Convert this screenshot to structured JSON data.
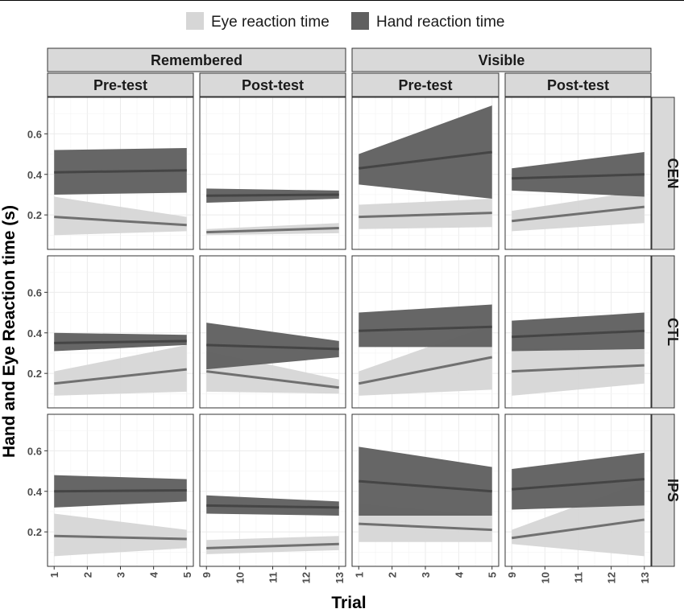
{
  "chart_data": {
    "type": "line",
    "xlabel": "Trial",
    "ylabel": "Hand and Eye Reaction time (s)",
    "ylim": [
      0.03,
      0.78
    ],
    "y_ticks": [
      0.2,
      0.4,
      0.6
    ],
    "y_tick_labels": [
      "0.2",
      "0.4",
      "0.6"
    ],
    "grid": true,
    "legend_position": "top",
    "legend": [
      {
        "label": "Eye reaction time",
        "color": "#d6d6d6"
      },
      {
        "label": "Hand reaction time",
        "color": "#606060"
      }
    ],
    "colors": {
      "eye_ribbon": "#d6d6d6",
      "eye_line": "#707070",
      "hand_ribbon": "#606060",
      "hand_line": "#454545",
      "strip_fill": "#d9d9d9"
    },
    "outer_strips": [
      "Remembered",
      "Visible"
    ],
    "column_strips": [
      "Pre-test",
      "Post-test",
      "Pre-test",
      "Post-test"
    ],
    "row_strips": [
      "CEN",
      "CTL",
      "IPS"
    ],
    "column_x": [
      {
        "xlim": [
          0.8,
          5.2
        ],
        "ticks": [
          1,
          2,
          3,
          4,
          5
        ],
        "tick_labels": [
          "1",
          "2",
          "3",
          "4",
          "5"
        ]
      },
      {
        "xlim": [
          8.8,
          13.2
        ],
        "ticks": [
          9,
          10,
          11,
          12,
          13
        ],
        "tick_labels": [
          "9",
          "10",
          "11",
          "12",
          "13"
        ]
      },
      {
        "xlim": [
          0.8,
          5.2
        ],
        "ticks": [
          1,
          2,
          3,
          4,
          5
        ],
        "tick_labels": [
          "1",
          "2",
          "3",
          "4",
          "5"
        ]
      },
      {
        "xlim": [
          8.8,
          13.2
        ],
        "ticks": [
          9,
          10,
          11,
          12,
          13
        ],
        "tick_labels": [
          "9",
          "10",
          "11",
          "12",
          "13"
        ]
      }
    ],
    "panels": [
      {
        "row": 0,
        "col": 0,
        "eye": {
          "fit": [
            0.19,
            0.15
          ],
          "lower": [
            0.1,
            0.12
          ],
          "upper": [
            0.29,
            0.19
          ]
        },
        "hand": {
          "fit": [
            0.41,
            0.42
          ],
          "lower": [
            0.3,
            0.31
          ],
          "upper": [
            0.52,
            0.53
          ]
        }
      },
      {
        "row": 0,
        "col": 1,
        "eye": {
          "fit": [
            0.115,
            0.135
          ],
          "lower": [
            0.1,
            0.11
          ],
          "upper": [
            0.13,
            0.16
          ]
        },
        "hand": {
          "fit": [
            0.295,
            0.3
          ],
          "lower": [
            0.26,
            0.28
          ],
          "upper": [
            0.33,
            0.32
          ]
        }
      },
      {
        "row": 0,
        "col": 2,
        "eye": {
          "fit": [
            0.19,
            0.21
          ],
          "lower": [
            0.13,
            0.14
          ],
          "upper": [
            0.25,
            0.28
          ]
        },
        "hand": {
          "fit": [
            0.43,
            0.51
          ],
          "lower": [
            0.35,
            0.28
          ],
          "upper": [
            0.5,
            0.74
          ]
        }
      },
      {
        "row": 0,
        "col": 3,
        "eye": {
          "fit": [
            0.17,
            0.24
          ],
          "lower": [
            0.12,
            0.16
          ],
          "upper": [
            0.22,
            0.32
          ]
        },
        "hand": {
          "fit": [
            0.38,
            0.4
          ],
          "lower": [
            0.32,
            0.29
          ],
          "upper": [
            0.43,
            0.51
          ]
        }
      },
      {
        "row": 1,
        "col": 0,
        "eye": {
          "fit": [
            0.15,
            0.22
          ],
          "lower": [
            0.09,
            0.11
          ],
          "upper": [
            0.21,
            0.34
          ]
        },
        "hand": {
          "fit": [
            0.35,
            0.36
          ],
          "lower": [
            0.31,
            0.34
          ],
          "upper": [
            0.4,
            0.39
          ]
        }
      },
      {
        "row": 1,
        "col": 1,
        "eye": {
          "fit": [
            0.21,
            0.13
          ],
          "lower": [
            0.11,
            0.1
          ],
          "upper": [
            0.31,
            0.17
          ]
        },
        "hand": {
          "fit": [
            0.34,
            0.32
          ],
          "lower": [
            0.22,
            0.28
          ],
          "upper": [
            0.45,
            0.36
          ]
        }
      },
      {
        "row": 1,
        "col": 2,
        "eye": {
          "fit": [
            0.15,
            0.28
          ],
          "lower": [
            0.09,
            0.12
          ],
          "upper": [
            0.21,
            0.44
          ]
        },
        "hand": {
          "fit": [
            0.41,
            0.43
          ],
          "lower": [
            0.33,
            0.33
          ],
          "upper": [
            0.5,
            0.54
          ]
        }
      },
      {
        "row": 1,
        "col": 3,
        "eye": {
          "fit": [
            0.21,
            0.24
          ],
          "lower": [
            0.09,
            0.15
          ],
          "upper": [
            0.33,
            0.33
          ]
        },
        "hand": {
          "fit": [
            0.38,
            0.41
          ],
          "lower": [
            0.31,
            0.32
          ],
          "upper": [
            0.46,
            0.5
          ]
        }
      },
      {
        "row": 2,
        "col": 0,
        "eye": {
          "fit": [
            0.18,
            0.165
          ],
          "lower": [
            0.08,
            0.12
          ],
          "upper": [
            0.29,
            0.21
          ]
        },
        "hand": {
          "fit": [
            0.4,
            0.405
          ],
          "lower": [
            0.32,
            0.35
          ],
          "upper": [
            0.48,
            0.46
          ]
        }
      },
      {
        "row": 2,
        "col": 1,
        "eye": {
          "fit": [
            0.12,
            0.14
          ],
          "lower": [
            0.09,
            0.11
          ],
          "upper": [
            0.16,
            0.18
          ]
        },
        "hand": {
          "fit": [
            0.33,
            0.32
          ],
          "lower": [
            0.29,
            0.28
          ],
          "upper": [
            0.38,
            0.35
          ]
        }
      },
      {
        "row": 2,
        "col": 2,
        "eye": {
          "fit": [
            0.24,
            0.21
          ],
          "lower": [
            0.15,
            0.15
          ],
          "upper": [
            0.34,
            0.28
          ]
        },
        "hand": {
          "fit": [
            0.45,
            0.4
          ],
          "lower": [
            0.28,
            0.28
          ],
          "upper": [
            0.62,
            0.52
          ]
        }
      },
      {
        "row": 2,
        "col": 3,
        "eye": {
          "fit": [
            0.17,
            0.26
          ],
          "lower": [
            0.14,
            0.08
          ],
          "upper": [
            0.21,
            0.45
          ]
        },
        "hand": {
          "fit": [
            0.41,
            0.46
          ],
          "lower": [
            0.31,
            0.33
          ],
          "upper": [
            0.51,
            0.59
          ]
        }
      }
    ]
  }
}
